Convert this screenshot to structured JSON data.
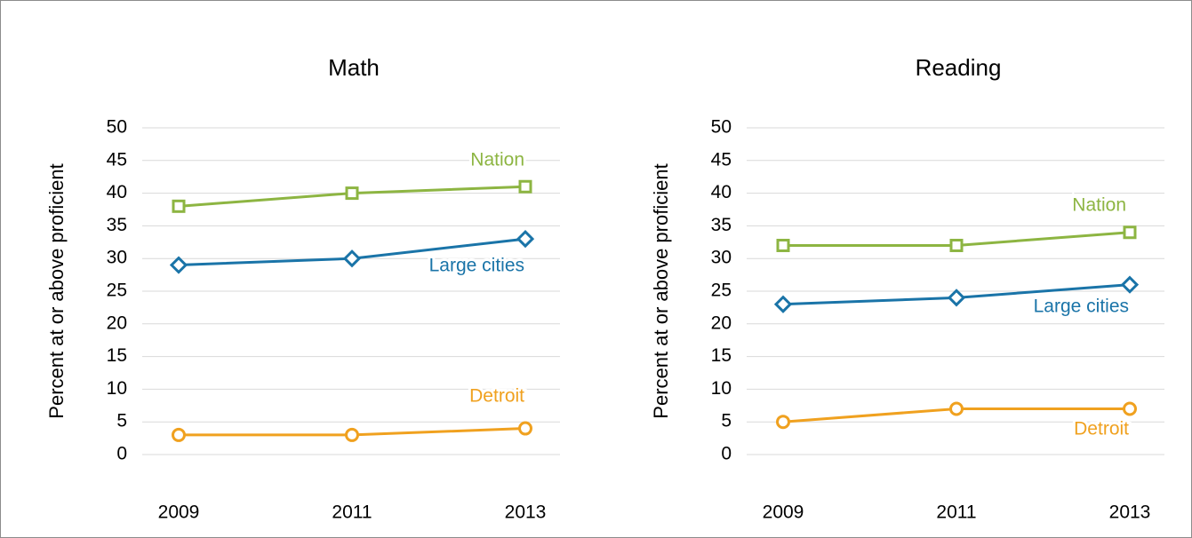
{
  "chart_data": [
    {
      "type": "line",
      "title": "Math",
      "y_label": "Percent at or above proficient",
      "categories": [
        "2009",
        "2011",
        "2013"
      ],
      "series": [
        {
          "name": "Nation",
          "color": "#8db542",
          "marker": "square",
          "values": [
            38,
            40,
            41
          ]
        },
        {
          "name": "Large cities",
          "color": "#1a74a8",
          "marker": "diamond",
          "values": [
            29,
            30,
            33
          ]
        },
        {
          "name": "Detroit",
          "color": "#f0a11f",
          "marker": "circle",
          "values": [
            3,
            3,
            4
          ]
        }
      ],
      "ylim": [
        0,
        50
      ],
      "yticks": [
        0,
        5,
        10,
        15,
        20,
        25,
        30,
        35,
        40,
        45,
        50
      ],
      "grid": true
    },
    {
      "type": "line",
      "title": "Reading",
      "y_label": "Percent at or above proficient",
      "categories": [
        "2009",
        "2011",
        "2013"
      ],
      "series": [
        {
          "name": "Nation",
          "color": "#8db542",
          "marker": "square",
          "values": [
            32,
            32,
            34
          ]
        },
        {
          "name": "Large cities",
          "color": "#1a74a8",
          "marker": "diamond",
          "values": [
            23,
            24,
            26
          ]
        },
        {
          "name": "Detroit",
          "color": "#f0a11f",
          "marker": "circle",
          "values": [
            5,
            7,
            7
          ]
        }
      ],
      "ylim": [
        0,
        50
      ],
      "yticks": [
        0,
        5,
        10,
        15,
        20,
        25,
        30,
        35,
        40,
        45,
        50
      ],
      "grid": true
    }
  ]
}
